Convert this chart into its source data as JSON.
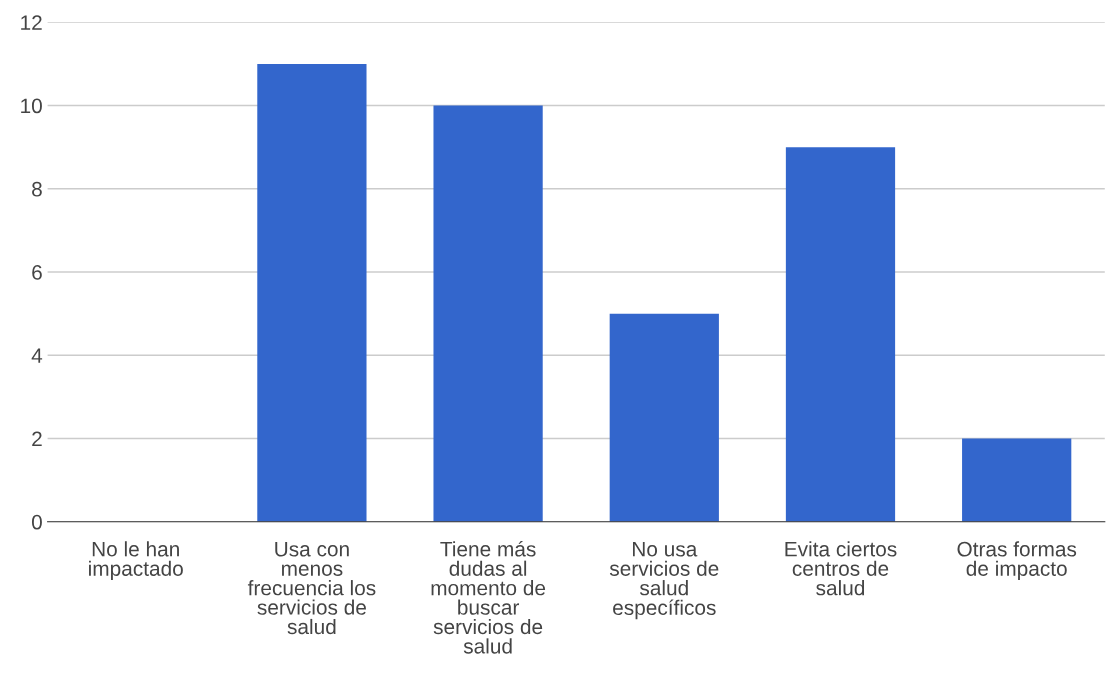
{
  "chart_data": {
    "type": "bar",
    "categories": [
      "No le han\nimpactado",
      "Usa con\nmenos\nfrecuencia los\nservicios de\nsalud",
      "Tiene más\ndudas al\nmomento de\nbuscar\nservicios de\nsalud",
      "No usa\nservicios de\nsalud\nespecíficos",
      "Evita ciertos\ncentros de\nsalud",
      "Otras formas\nde impacto"
    ],
    "values": [
      0,
      11,
      10,
      5,
      9,
      2
    ],
    "color": "#3366cc",
    "ylim": [
      0,
      12
    ],
    "yticks": [
      0,
      2,
      4,
      6,
      8,
      10,
      12
    ],
    "grid": "y",
    "legend": false
  }
}
